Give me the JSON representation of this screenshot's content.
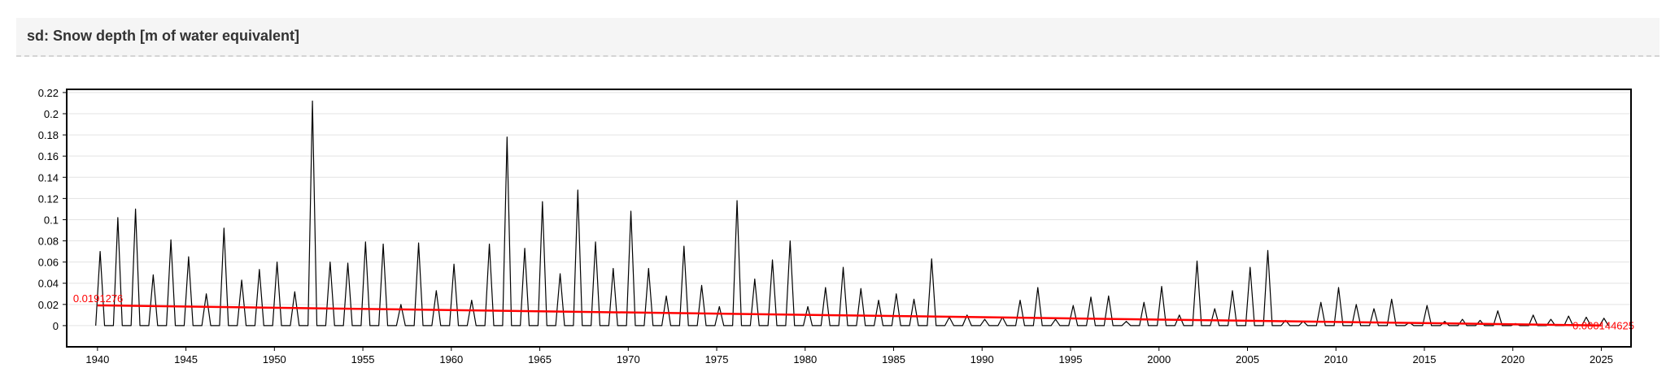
{
  "chart_data": {
    "type": "line",
    "title": "sd: Snow depth [m of water equivalent]",
    "xlim": [
      1938.26,
      2026.68
    ],
    "xticks": [
      1940,
      1945,
      1950,
      1955,
      1960,
      1965,
      1970,
      1975,
      1980,
      1985,
      1990,
      1995,
      2000,
      2005,
      2010,
      2015,
      2020,
      2025
    ],
    "ylim": [
      -0.02,
      0.223
    ],
    "yticks": [
      0,
      0.02,
      0.04,
      0.06,
      0.08,
      0.1,
      0.12,
      0.14,
      0.16,
      0.18,
      0.2,
      0.22
    ],
    "grid": true,
    "series": [
      {
        "color": "#000000",
        "x": [
          1939.9,
          1940.15,
          1940.4,
          1940.9,
          1941.15,
          1941.4,
          1941.9,
          1942.15,
          1942.4,
          1942.9,
          1943.15,
          1943.4,
          1943.9,
          1944.15,
          1944.4,
          1944.9,
          1945.15,
          1945.4,
          1945.9,
          1946.15,
          1946.4,
          1946.9,
          1947.15,
          1947.4,
          1947.9,
          1948.15,
          1948.4,
          1948.9,
          1949.15,
          1949.4,
          1949.9,
          1950.15,
          1950.4,
          1950.9,
          1951.15,
          1951.4,
          1951.9,
          1952.15,
          1952.4,
          1952.9,
          1953.15,
          1953.4,
          1953.9,
          1954.15,
          1954.4,
          1954.9,
          1955.15,
          1955.4,
          1955.9,
          1956.15,
          1956.4,
          1956.9,
          1957.15,
          1957.4,
          1957.9,
          1958.15,
          1958.4,
          1958.9,
          1959.15,
          1959.4,
          1959.9,
          1960.15,
          1960.4,
          1960.9,
          1961.15,
          1961.4,
          1961.9,
          1962.15,
          1962.4,
          1962.9,
          1963.15,
          1963.4,
          1963.9,
          1964.15,
          1964.4,
          1964.9,
          1965.15,
          1965.4,
          1965.9,
          1966.15,
          1966.4,
          1966.9,
          1967.15,
          1967.4,
          1967.9,
          1968.15,
          1968.4,
          1968.9,
          1969.15,
          1969.4,
          1969.9,
          1970.15,
          1970.4,
          1970.9,
          1971.15,
          1971.4,
          1971.9,
          1972.15,
          1972.4,
          1972.9,
          1973.15,
          1973.4,
          1973.9,
          1974.15,
          1974.4,
          1974.9,
          1975.15,
          1975.4,
          1975.9,
          1976.15,
          1976.4,
          1976.9,
          1977.15,
          1977.4,
          1977.9,
          1978.15,
          1978.4,
          1978.9,
          1979.15,
          1979.4,
          1979.9,
          1980.15,
          1980.4,
          1980.9,
          1981.15,
          1981.4,
          1981.9,
          1982.15,
          1982.4,
          1982.9,
          1983.15,
          1983.4,
          1983.9,
          1984.15,
          1984.4,
          1984.9,
          1985.15,
          1985.4,
          1985.9,
          1986.15,
          1986.4,
          1986.9,
          1987.15,
          1987.4,
          1987.9,
          1988.15,
          1988.4,
          1988.9,
          1989.15,
          1989.4,
          1989.9,
          1990.15,
          1990.4,
          1990.9,
          1991.15,
          1991.4,
          1991.9,
          1992.15,
          1992.4,
          1992.9,
          1993.15,
          1993.4,
          1993.9,
          1994.15,
          1994.4,
          1994.9,
          1995.15,
          1995.4,
          1995.9,
          1996.15,
          1996.4,
          1996.9,
          1997.15,
          1997.4,
          1997.9,
          1998.15,
          1998.4,
          1998.9,
          1999.15,
          1999.4,
          1999.9,
          2000.15,
          2000.4,
          2000.9,
          2001.15,
          2001.4,
          2001.9,
          2002.15,
          2002.4,
          2002.9,
          2003.15,
          2003.4,
          2003.9,
          2004.15,
          2004.4,
          2004.9,
          2005.15,
          2005.4,
          2005.9,
          2006.15,
          2006.4,
          2006.9,
          2007.15,
          2007.4,
          2007.9,
          2008.15,
          2008.4,
          2008.9,
          2009.15,
          2009.4,
          2009.9,
          2010.15,
          2010.4,
          2010.9,
          2011.15,
          2011.4,
          2011.9,
          2012.15,
          2012.4,
          2012.9,
          2013.15,
          2013.4,
          2013.9,
          2014.15,
          2014.4,
          2014.9,
          2015.15,
          2015.4,
          2015.9,
          2016.15,
          2016.4,
          2016.9,
          2017.15,
          2017.4,
          2017.9,
          2018.15,
          2018.4,
          2018.9,
          2019.15,
          2019.4,
          2019.9,
          2020.15,
          2020.4,
          2020.9,
          2021.15,
          2021.4,
          2021.9,
          2022.15,
          2022.4,
          2022.9,
          2023.15,
          2023.4,
          2023.9,
          2024.15,
          2024.4,
          2024.9,
          2025.15,
          2025.4
        ],
        "values": [
          0,
          0.07,
          0,
          0,
          0.102,
          0,
          0,
          0.11,
          0,
          0,
          0.048,
          0,
          0,
          0.081,
          0,
          0,
          0.065,
          0,
          0,
          0.03,
          0,
          0,
          0.092,
          0,
          0,
          0.043,
          0,
          0,
          0.053,
          0,
          0,
          0.06,
          0,
          0,
          0.032,
          0,
          0,
          0.212,
          0,
          0,
          0.06,
          0,
          0,
          0.059,
          0,
          0,
          0.079,
          0,
          0,
          0.077,
          0,
          0,
          0.02,
          0,
          0,
          0.078,
          0,
          0,
          0.033,
          0,
          0,
          0.058,
          0,
          0,
          0.024,
          0,
          0,
          0.077,
          0,
          0,
          0.178,
          0,
          0,
          0.073,
          0,
          0,
          0.117,
          0,
          0,
          0.049,
          0,
          0,
          0.128,
          0,
          0,
          0.079,
          0,
          0,
          0.054,
          0,
          0,
          0.108,
          0,
          0,
          0.054,
          0,
          0,
          0.028,
          0,
          0,
          0.075,
          0,
          0,
          0.038,
          0,
          0,
          0.018,
          0,
          0,
          0.118,
          0,
          0,
          0.044,
          0,
          0,
          0.062,
          0,
          0,
          0.08,
          0,
          0,
          0.018,
          0,
          0,
          0.036,
          0,
          0,
          0.055,
          0,
          0,
          0.035,
          0,
          0,
          0.024,
          0,
          0,
          0.03,
          0,
          0,
          0.025,
          0,
          0,
          0.063,
          0,
          0,
          0.008,
          0,
          0,
          0.01,
          0,
          0,
          0.006,
          0,
          0,
          0.008,
          0,
          0,
          0.024,
          0,
          0,
          0.036,
          0,
          0,
          0.006,
          0,
          0,
          0.019,
          0,
          0,
          0.027,
          0,
          0,
          0.028,
          0,
          0,
          0.004,
          0,
          0,
          0.022,
          0,
          0,
          0.037,
          0,
          0,
          0.01,
          0,
          0,
          0.061,
          0,
          0,
          0.016,
          0,
          0,
          0.033,
          0,
          0,
          0.055,
          0,
          0,
          0.071,
          0,
          0,
          0.005,
          0,
          0,
          0.004,
          0,
          0,
          0.022,
          0,
          0,
          0.036,
          0,
          0,
          0.02,
          0,
          0,
          0.016,
          0,
          0,
          0.025,
          0,
          0,
          0.003,
          0,
          0,
          0.019,
          0,
          0,
          0.004,
          0,
          0,
          0.006,
          0,
          0,
          0.005,
          0,
          0,
          0.014,
          0,
          0,
          0.002,
          0,
          0,
          0.01,
          0,
          0,
          0.006,
          0,
          0,
          0.009,
          0,
          0,
          0.008,
          0,
          0,
          0.007,
          0
        ]
      },
      {
        "color": "#ff0000",
        "x": [
          1940,
          2025
        ],
        "values": [
          0.0191276,
          0.000144625
        ]
      }
    ]
  }
}
